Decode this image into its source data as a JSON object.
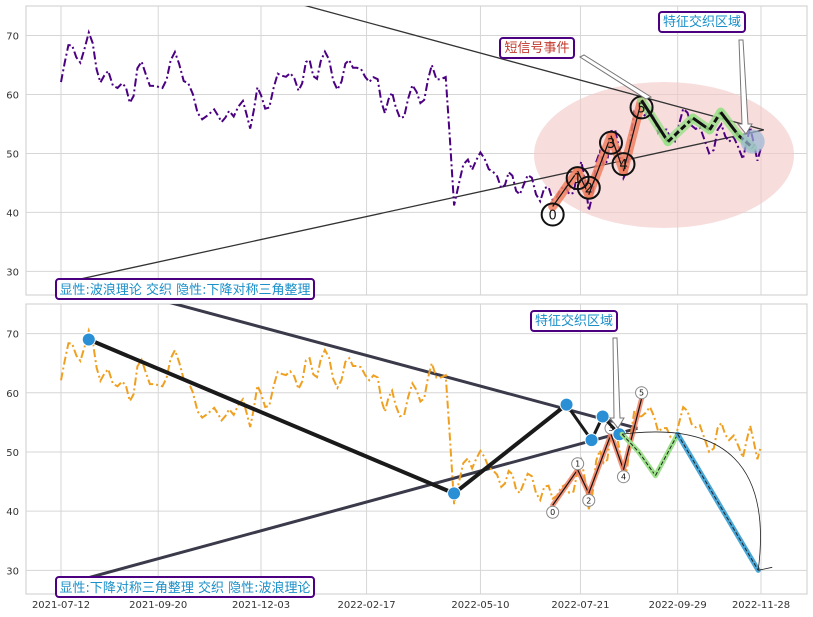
{
  "chart_data": [
    {
      "type": "line",
      "ylim": [
        26,
        75
      ],
      "yticks": [
        30,
        40,
        50,
        60,
        70
      ],
      "grid": true,
      "price_color": "#4b0082",
      "wave_color": "#f08060",
      "ellipse_color": "#f4c6c6",
      "labels": {
        "pattern": "显性:波浪理论 交织 隐性:下降对称三角整理",
        "feature_zone": "特征交织区域",
        "short_signal": "短信号事件"
      },
      "wave_points": [
        {
          "label": "0",
          "date": "2022-07-01",
          "value": 41.0
        },
        {
          "label": "1",
          "date": "2022-07-19",
          "value": 47.0
        },
        {
          "label": "2",
          "date": "2022-07-27",
          "value": 43.0
        },
        {
          "label": "3",
          "date": "2022-08-12",
          "value": 53.0
        },
        {
          "label": "4",
          "date": "2022-08-21",
          "value": 47.0
        },
        {
          "label": "5",
          "date": "2022-09-03",
          "value": 59.0
        }
      ],
      "triangle_upper": [
        {
          "date": "2021-07-01",
          "value": 87.0
        },
        {
          "date": "2022-11-30",
          "value": 54.0
        }
      ],
      "triangle_lower": [
        {
          "date": "2021-07-12",
          "value": 28.0
        },
        {
          "date": "2022-11-30",
          "value": 54.0
        }
      ]
    },
    {
      "type": "line",
      "xlim": [
        "2021-07-12",
        "2022-12-20"
      ],
      "ylim": [
        26,
        75
      ],
      "yticks": [
        30,
        40,
        50,
        60,
        70
      ],
      "xtick_labels": [
        "2021-07-12",
        "2021-09-20",
        "2021-12-03",
        "2022-02-17",
        "2022-05-10",
        "2022-07-21",
        "2022-09-29",
        "2022-11-28"
      ],
      "grid": true,
      "price_color": "#f0a020",
      "labels": {
        "pattern": "显性:下降对称三角整理 交织 隐性:波浪理论",
        "feature_zone": "特征交织区域"
      },
      "triangle_vertices": [
        {
          "date": "2021-08-01",
          "value": 69.0
        },
        {
          "date": "2022-04-21",
          "value": 43.0
        },
        {
          "date": "2022-07-11",
          "value": 58.0
        },
        {
          "date": "2022-07-29",
          "value": 52.0
        },
        {
          "date": "2022-08-06",
          "value": 56.0
        },
        {
          "date": "2022-08-18",
          "value": 53.0
        }
      ],
      "triangle_upper": [
        {
          "date": "2021-07-15",
          "value": 80.0
        },
        {
          "date": "2022-08-31",
          "value": 54.0
        }
      ],
      "triangle_lower": [
        {
          "date": "2021-07-20",
          "value": 28.0
        },
        {
          "date": "2022-08-31",
          "value": 54.0
        }
      ],
      "projection": [
        {
          "date": "2022-08-20",
          "value": 53.0
        },
        {
          "date": "2022-09-01",
          "value": 50.0
        },
        {
          "date": "2022-09-13",
          "value": 46.0
        },
        {
          "date": "2022-09-29",
          "value": 53.0
        },
        {
          "date": "2022-11-26",
          "value": 30.0
        }
      ],
      "wave_points": [
        {
          "label": "0",
          "date": "2022-07-01",
          "value": 41.0
        },
        {
          "label": "1",
          "date": "2022-07-19",
          "value": 47.0
        },
        {
          "label": "2",
          "date": "2022-07-27",
          "value": 43.0
        },
        {
          "label": "3",
          "date": "2022-08-12",
          "value": 53.0
        },
        {
          "label": "4",
          "date": "2022-08-21",
          "value": 47.0
        },
        {
          "label": "5",
          "date": "2022-09-03",
          "value": 59.0
        }
      ]
    }
  ]
}
